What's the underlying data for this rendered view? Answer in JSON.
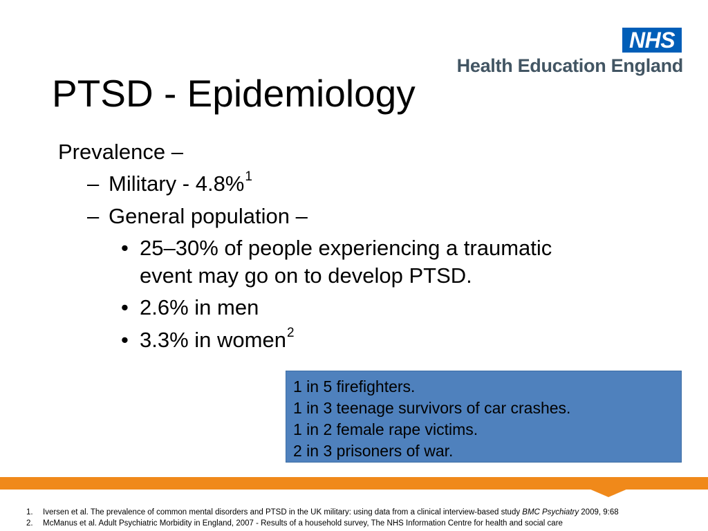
{
  "logo": {
    "brand": "NHS",
    "organisation": "Health Education England"
  },
  "slide": {
    "title": "PTSD - Epidemiology"
  },
  "content": {
    "level1": "Prevalence –",
    "military": {
      "dash": "–",
      "text": "Military - 4.8%",
      "ref": "1"
    },
    "general": {
      "dash": "–",
      "text": "General population –"
    },
    "points": [
      {
        "bullet": "•",
        "text": "25–30% of people experiencing a traumatic",
        "text2": "event may go on to develop PTSD."
      },
      {
        "bullet": "•",
        "text": "2.6% in men"
      },
      {
        "bullet": "•",
        "text": "3.3% in women",
        "ref": "2"
      }
    ]
  },
  "callout": {
    "lines": [
      "1 in 5 firefighters.",
      "1 in 3 teenage survivors of car crashes.",
      "1 in 2 female rape victims.",
      "2 in 3 prisoners of war."
    ]
  },
  "footnotes": [
    {
      "num": "1.",
      "text": "Iversen et al. The prevalence of common mental disorders and PTSD in the UK military: using data from a clinical interview-based study ",
      "journal": "BMC Psychiatry",
      "tail": " 2009, 9:68"
    },
    {
      "num": "2.",
      "text": "McManus et al. Adult Psychiatric Morbidity in England, 2007 - Results of a household survey, The NHS Information Centre for health and social care"
    }
  ],
  "colors": {
    "nhs_blue": "#005eb8",
    "org_text": "#425563",
    "callout_bg": "#4f81bd",
    "footer_band": "#f0891a"
  }
}
